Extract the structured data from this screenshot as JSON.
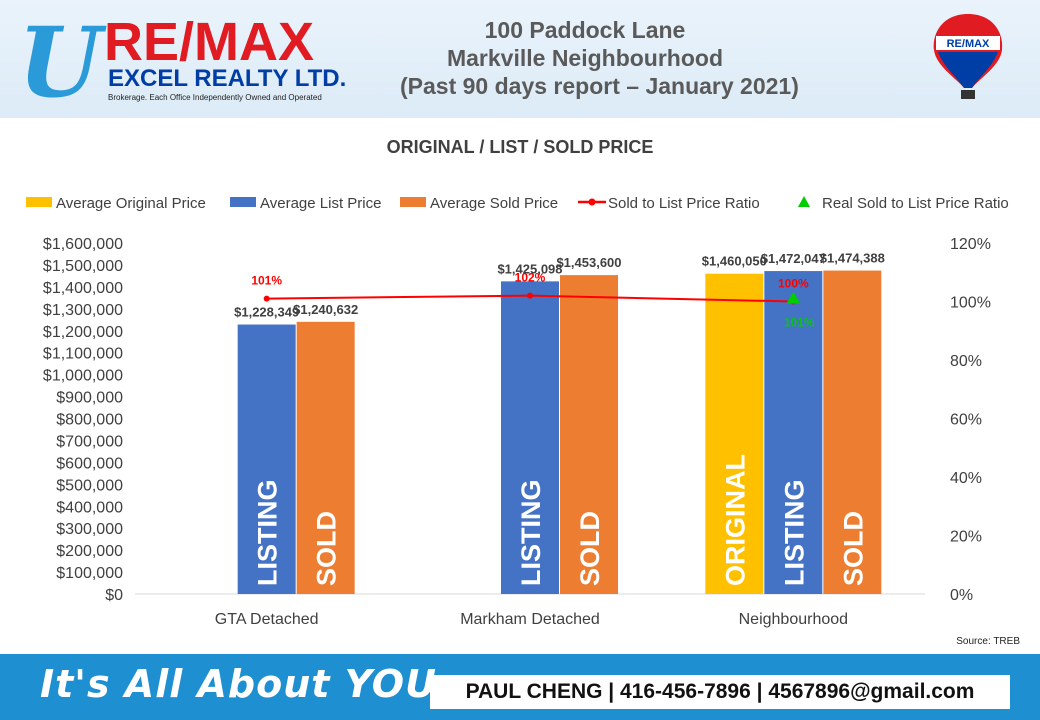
{
  "brand": {
    "name_line1": "RE/MAX",
    "name_line2": "EXCEL REALTY LTD.",
    "sub_line": "Brokerage. Each Office Independently Owned and Operated",
    "u_mark": "U",
    "balloon_text": "RE/MAX",
    "colors": {
      "red": "#e11b22",
      "blue": "#003da5",
      "light_blue": "#1e90d2"
    }
  },
  "header": {
    "line1": "100 Paddock Lane",
    "line2": "Markville Neighbourhood",
    "line3": "(Past 90 days report – January 2021)"
  },
  "chart_data": {
    "type": "bar",
    "title": "ORIGINAL / LIST / SOLD PRICE",
    "categories": [
      "GTA  Detached",
      "Markham Detached",
      "Neighbourhood"
    ],
    "series": [
      {
        "name": "Average Original Price",
        "color": "#ffc000",
        "values": [
          null,
          null,
          1460050
        ],
        "value_labels": [
          "",
          "",
          "$1,460,050"
        ],
        "bar_text": [
          "",
          "",
          "ORIGINAL"
        ]
      },
      {
        "name": "Average List Price",
        "color": "#4472c4",
        "values": [
          1228349,
          1425098,
          1472047
        ],
        "value_labels": [
          "$1,228,349",
          "$1,425,098",
          "$1,472,047"
        ],
        "bar_text": [
          "LISTING",
          "LISTING",
          "LISTING"
        ]
      },
      {
        "name": "Average Sold Price",
        "color": "#ed7d31",
        "values": [
          1240632,
          1453600,
          1474388
        ],
        "value_labels": [
          "$1,240,632",
          "$1,453,600",
          "$1,474,388"
        ],
        "bar_text": [
          "SOLD",
          "SOLD",
          "SOLD"
        ]
      }
    ],
    "ratio_series": [
      {
        "name": "Sold to List Price Ratio",
        "color": "#ff0000",
        "type": "line",
        "values": [
          1.01,
          1.02,
          1.0
        ],
        "labels": [
          "101%",
          "102%",
          "100%"
        ]
      },
      {
        "name": "Real Sold to List Price Ratio",
        "color": "#00cc00",
        "type": "scatter",
        "values": [
          null,
          null,
          1.01
        ],
        "labels": [
          "",
          "",
          "101%"
        ]
      }
    ],
    "ylim": [
      0,
      1600000
    ],
    "y_ticks": [
      "$0",
      "$100,000",
      "$200,000",
      "$300,000",
      "$400,000",
      "$500,000",
      "$600,000",
      "$700,000",
      "$800,000",
      "$900,000",
      "$1,000,000",
      "$1,100,000",
      "$1,200,000",
      "$1,300,000",
      "$1,400,000",
      "$1,500,000",
      "$1,600,000"
    ],
    "y2lim": [
      0,
      1.2
    ],
    "y2_ticks": [
      "0%",
      "20%",
      "40%",
      "60%",
      "80%",
      "100%",
      "120%"
    ],
    "grid": false,
    "legend_position": "top"
  },
  "source": "Source: TREB",
  "footer": {
    "tagline": "It's All About YOU",
    "contact": "PAUL CHENG | 416-456-7896 | 4567896@gmail.com"
  }
}
